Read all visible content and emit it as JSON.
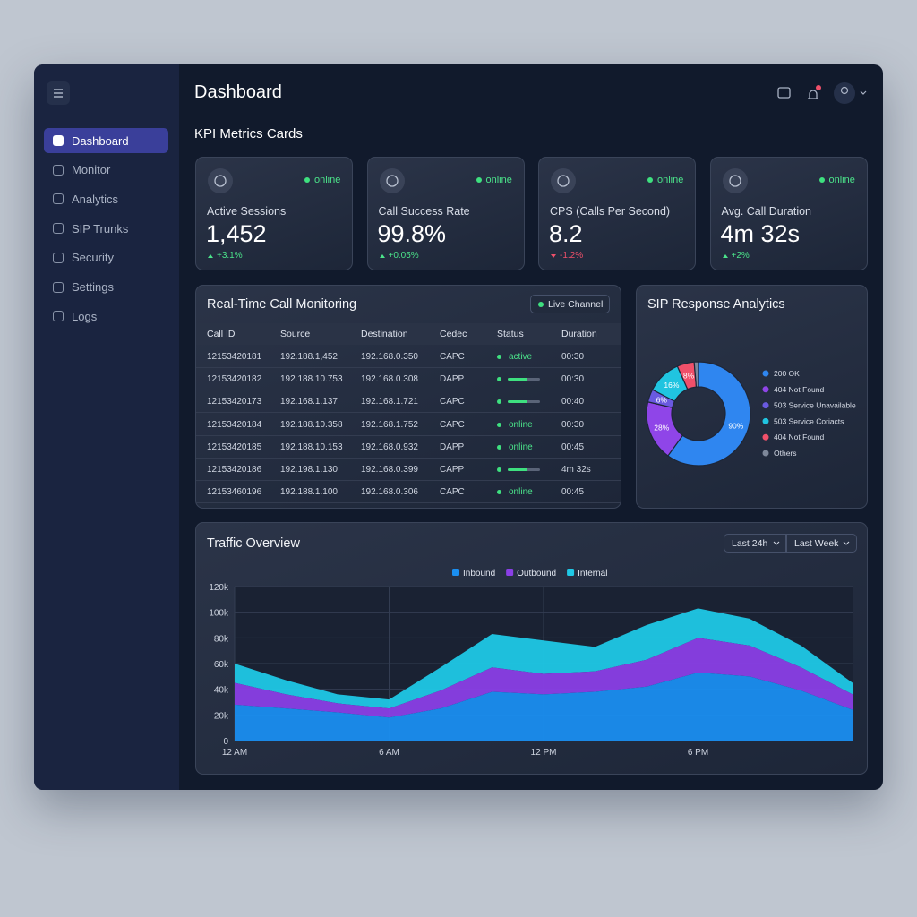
{
  "sidebar": {
    "items": [
      "Dashboard",
      "Monitor",
      "Analytics",
      "SIP Trunks",
      "Security",
      "Settings",
      "Logs"
    ]
  },
  "header": {
    "title": "Dashboard"
  },
  "kpi": {
    "title": "KPI Metrics Cards",
    "cards": [
      {
        "label": "Active Sessions",
        "value": "1,452",
        "status": "online",
        "change": "+3.1%"
      },
      {
        "label": "Call Success Rate",
        "value": "99.8%",
        "status": "online",
        "change": "+0.05%"
      },
      {
        "label": "CPS (Calls Per Second)",
        "value": "8.2",
        "status": "online",
        "change": "-1.2%"
      },
      {
        "label": "Avg. Call Duration",
        "value": "4m 32s",
        "status": "online",
        "change": "+2%"
      }
    ]
  },
  "table": {
    "title": "Real-Time Call Monitoring",
    "badge": "Live Channel",
    "columns": [
      "Call ID",
      "Source",
      "Destination",
      "Cedec",
      "Status",
      "Duration"
    ],
    "rows": [
      [
        "12153420181",
        "192.188.1,452",
        "192.168.0.350",
        "CAPC",
        "active",
        "00:30"
      ],
      [
        "12153420182",
        "192.188.10.753",
        "192.168.0.308",
        "DAPP",
        null,
        "00:30"
      ],
      [
        "12153420173",
        "192.168.1.137",
        "192.168.1.721",
        "CAPC",
        null,
        "00:40"
      ],
      [
        "12153420184",
        "192.188.10.358",
        "192.168.1.752",
        "CAPC",
        "online",
        "00:30"
      ],
      [
        "12153420185",
        "192.188.10.153",
        "192.168.0.932",
        "DAPP",
        "online",
        "00:45"
      ],
      [
        "12153420186",
        "192.198.1.130",
        "192.168.0.399",
        "CAPP",
        null,
        "4m 32s"
      ],
      [
        "12153460196",
        "192.188.1.100",
        "192.168.0.306",
        "CAPC",
        "online",
        "00:45"
      ]
    ]
  },
  "chart_data": [
    {
      "type": "donut",
      "title": "SIP Response Analytics",
      "categories": [
        "200 OK",
        "404 Not Found",
        "503 Service Unavailable",
        "503 Service Coriacts",
        "404 Not Found",
        "Others"
      ],
      "values": [
        90,
        28,
        6,
        16,
        8,
        2
      ],
      "value_labels": [
        "90%",
        "28%",
        "6%",
        "16%",
        "8%",
        null
      ],
      "colors": [
        "#2f86f0",
        "#8f45e8",
        "#6a5ae0",
        "#20c4e0",
        "#f0506a",
        "#7d8799"
      ]
    },
    {
      "type": "stacked-area",
      "title": "Traffic Overview",
      "buttons": [
        "Last 24h",
        "Last Week"
      ],
      "x": [
        0,
        2,
        4,
        6,
        8,
        10,
        12,
        14,
        16,
        18,
        20,
        22,
        24
      ],
      "xlim": [
        0,
        24
      ],
      "xticks": [
        {
          "value": 0,
          "label": "12 AM"
        },
        {
          "value": 6,
          "label": "6 AM"
        },
        {
          "value": 12,
          "label": "12 PM"
        },
        {
          "value": 18,
          "label": "6 PM"
        }
      ],
      "ylim": [
        0,
        120000
      ],
      "yticks": [
        0,
        {
          "value": 20000,
          "label": "20k"
        },
        {
          "value": 40000,
          "label": "40k"
        },
        {
          "value": 60000,
          "label": "60k"
        },
        {
          "value": 80000,
          "label": "80k"
        },
        {
          "value": 100000,
          "label": "100k"
        },
        {
          "value": 120000,
          "label": "120k"
        }
      ],
      "grid": true,
      "series": [
        {
          "name": "Inbound",
          "color": "#1a8ef0",
          "values": [
            28000,
            25000,
            22000,
            18000,
            25000,
            38000,
            36000,
            38000,
            42000,
            53000,
            50000,
            39000,
            24000
          ]
        },
        {
          "name": "Outbound",
          "color": "#8a3fe6",
          "values": [
            17000,
            11000,
            7000,
            7000,
            14000,
            19000,
            16000,
            16000,
            21000,
            27000,
            24000,
            18000,
            12000
          ]
        },
        {
          "name": "Internal",
          "color": "#1fc8e6",
          "values": [
            15000,
            11000,
            7000,
            7000,
            18000,
            26000,
            26000,
            19000,
            27000,
            23000,
            21000,
            17000,
            9000
          ]
        }
      ]
    }
  ]
}
